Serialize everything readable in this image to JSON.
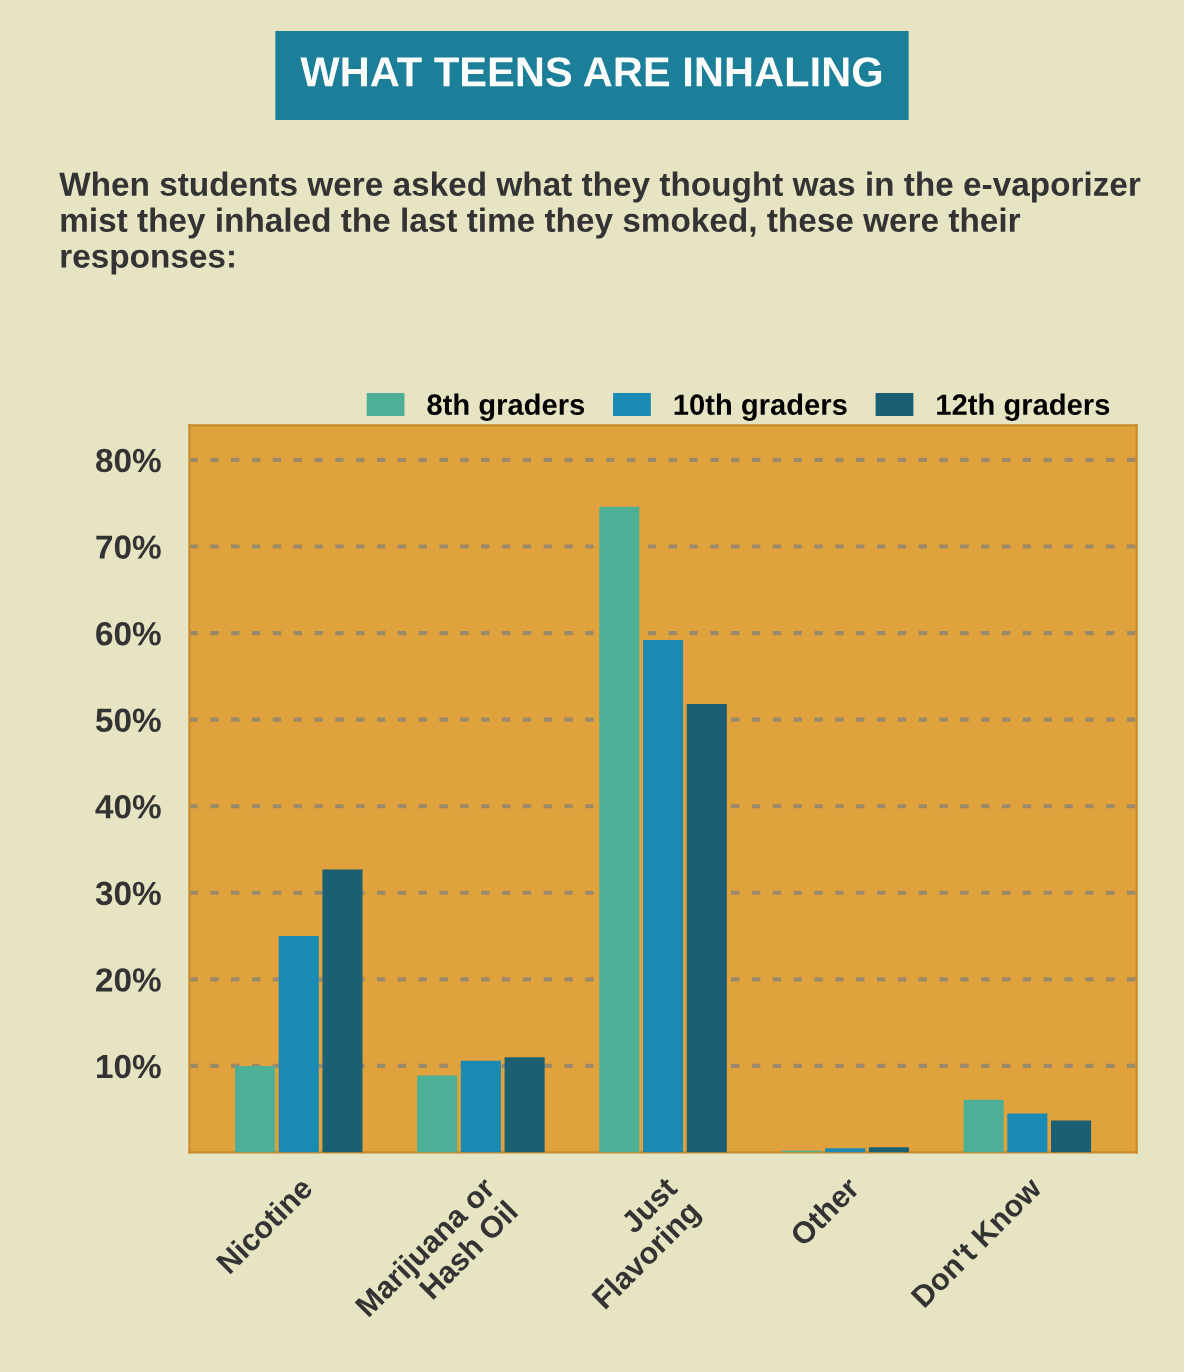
{
  "chart_data": {
    "type": "bar",
    "title": "WHAT TEENS ARE INHALING",
    "subtitle": "When students were asked what they thought was in the e-vaporizer mist they inhaled the last time they smoked, these were their responses:",
    "categories": [
      "Nicotine",
      "Marijuana or\nHash Oil",
      "Just\nFlavoring",
      "Other",
      "Don't Know"
    ],
    "series": [
      {
        "name": "8th graders",
        "color": "#4db096",
        "values": [
          10,
          8.9,
          74.6,
          0.2,
          6.1
        ]
      },
      {
        "name": "10th graders",
        "color": "#1a8ab5",
        "values": [
          25,
          10.6,
          59.2,
          0.5,
          4.5
        ]
      },
      {
        "name": "12th graders",
        "color": "#1b5f72",
        "values": [
          32.7,
          11,
          51.8,
          0.6,
          3.7
        ]
      }
    ],
    "ylim": [
      0,
      84
    ],
    "yticks": [
      {
        "value": 10,
        "label": "10%"
      },
      {
        "value": 20,
        "label": "20%"
      },
      {
        "value": 30,
        "label": "30%"
      },
      {
        "value": 40,
        "label": "40%"
      },
      {
        "value": 50,
        "label": "50%"
      },
      {
        "value": 60,
        "label": "60%"
      },
      {
        "value": 70,
        "label": "70%"
      },
      {
        "value": 80,
        "label": "80%"
      }
    ],
    "grid": "y",
    "legend": "top right"
  }
}
